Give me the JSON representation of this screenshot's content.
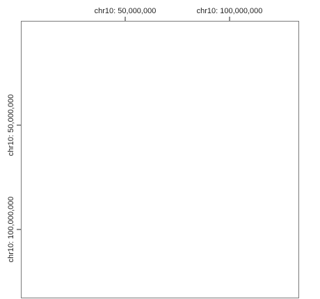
{
  "chart_data": {
    "type": "heatmap",
    "chromosome": "chr10",
    "x_axis": {
      "position": "top",
      "ticks": [
        {
          "value": 50000000,
          "label": "chr10: 50,000,000"
        },
        {
          "value": 100000000,
          "label": "chr10: 100,000,000"
        }
      ]
    },
    "y_axis": {
      "position": "left",
      "ticks": [
        {
          "value": 50000000,
          "label": "chr10: 50,000,000"
        },
        {
          "value": 100000000,
          "label": "chr10: 100,000,000"
        }
      ]
    },
    "values": [],
    "colors": {
      "frame": "#7a7a7a",
      "background": "#ffffff",
      "text": "#222222",
      "tick": "#222222"
    }
  }
}
